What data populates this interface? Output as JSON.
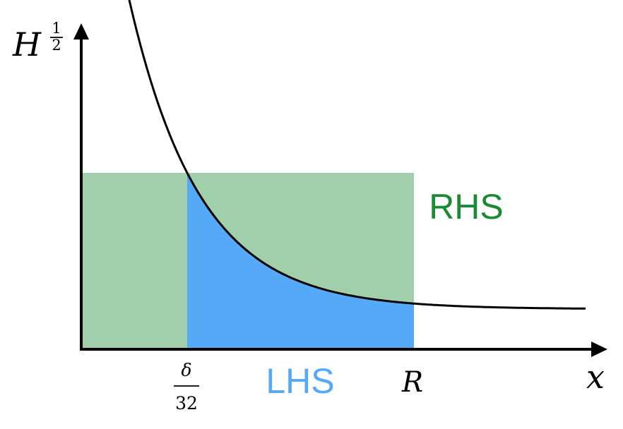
{
  "axes": {
    "y_label": "H",
    "y_exponent_numerator": "1",
    "y_exponent_denominator": "2",
    "x_label": "x"
  },
  "ticks": {
    "left_numerator": "δ",
    "left_denominator": "32",
    "right": "R"
  },
  "regions": {
    "rhs_label": "RHS",
    "lhs_label": "LHS"
  },
  "colors": {
    "rhs_fill": "#a2cfab",
    "rhs_text": "#1a8a34",
    "lhs_fill": "#56a9f6",
    "lhs_text": "#56a9f6",
    "curve": "#000000",
    "axis": "#000000"
  }
}
